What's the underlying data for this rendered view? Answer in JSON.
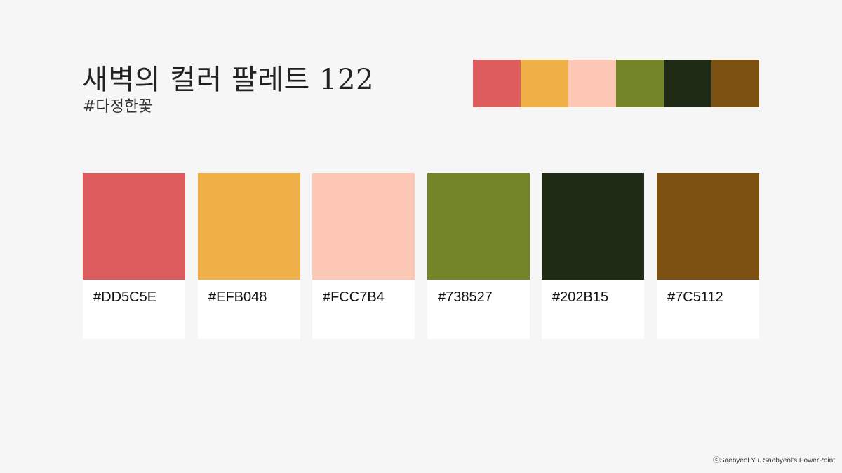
{
  "header": {
    "title": "새벽의 컬러 팔레트 122",
    "subtitle": "#다정한꽃"
  },
  "palette": [
    {
      "hex": "#DD5C5E"
    },
    {
      "hex": "#EFB048"
    },
    {
      "hex": "#FCC7B4"
    },
    {
      "hex": "#738527"
    },
    {
      "hex": "#202B15"
    },
    {
      "hex": "#7C5112"
    }
  ],
  "footer": {
    "credit": "ⓒSaebyeol Yu.  Saebyeol's PowerPoint"
  }
}
